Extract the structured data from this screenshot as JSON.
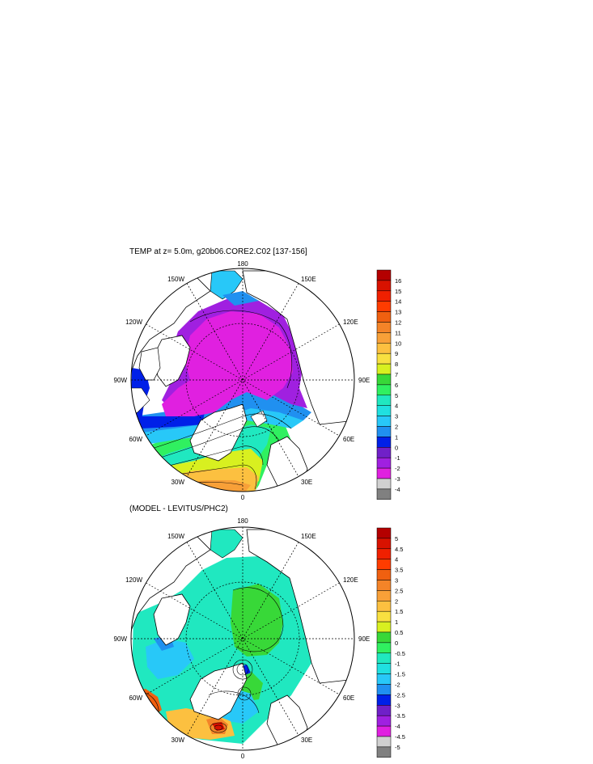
{
  "panel_top": {
    "title": "TEMP at z=   5.0m, g20b06.CORE2.C02 [137-156]",
    "lon_labels": {
      "n180": "180",
      "e150": "150E",
      "e120": "120E",
      "e90": "90E",
      "e60": "60E",
      "e30": "30E",
      "z0": "0",
      "w30": "30W",
      "w60": "60W",
      "w90": "90W",
      "w120": "120W",
      "w150": "150W"
    },
    "colorbar": {
      "levels": [
        "16",
        "15",
        "14",
        "13",
        "12",
        "11",
        "10",
        "9",
        "8",
        "7",
        "6",
        "5",
        "4",
        "3",
        "2",
        "1",
        "0",
        "-1",
        "-2",
        "-3",
        "-4"
      ],
      "colors": [
        "#b40000",
        "#d81200",
        "#f02000",
        "#ff3c00",
        "#f06010",
        "#f48428",
        "#f8a038",
        "#fcc040",
        "#f8e040",
        "#d8f020",
        "#38d838",
        "#30f060",
        "#20e8c0",
        "#20e0e0",
        "#28c8f8",
        "#2090f0",
        "#0020e8",
        "#7020c8",
        "#a020e0",
        "#e020e0",
        "#d0d0d0",
        "#808080"
      ]
    }
  },
  "panel_bottom": {
    "title": "(MODEL - LEVITUS/PHC2)",
    "lon_labels": {
      "n180": "180",
      "e150": "150E",
      "e120": "120E",
      "e90": "90E",
      "e60": "60E",
      "e30": "30E",
      "z0": "0",
      "w30": "30W",
      "w60": "60W",
      "w90": "90W",
      "w120": "120W",
      "w150": "150W"
    },
    "colorbar": {
      "levels": [
        "5",
        "4.5",
        "4",
        "3.5",
        "3",
        "2.5",
        "2",
        "1.5",
        "1",
        "0.5",
        "0",
        "-0.5",
        "-1",
        "-1.5",
        "-2",
        "-2.5",
        "-3",
        "-3.5",
        "-4",
        "-4.5",
        "-5"
      ],
      "colors": [
        "#b40000",
        "#d81200",
        "#f02000",
        "#ff3c00",
        "#f06010",
        "#f48428",
        "#f8a038",
        "#fcc040",
        "#f8e040",
        "#d8f020",
        "#38d838",
        "#30f060",
        "#20e8c0",
        "#20e0e0",
        "#28c8f8",
        "#2090f0",
        "#0020e8",
        "#7020c8",
        "#a020e0",
        "#e020e0",
        "#d0d0d0",
        "#808080"
      ]
    }
  }
}
